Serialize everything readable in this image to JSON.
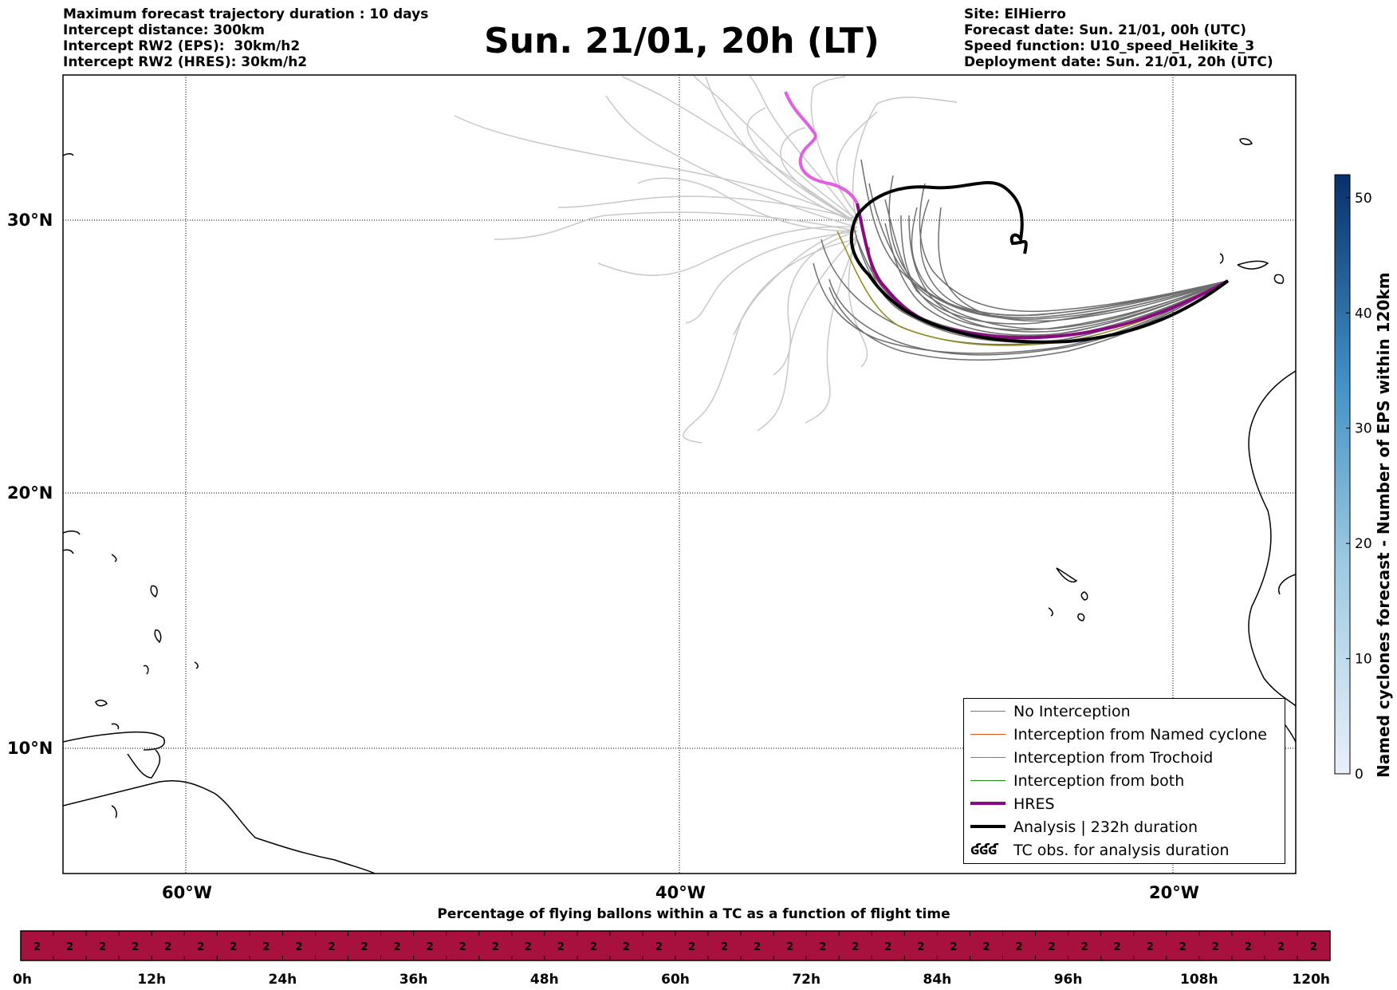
{
  "header_left": [
    "Maximum forecast trajectory duration : 10 days",
    "Intercept distance: 300km",
    "Intercept RW2 (EPS):  30km/h2",
    "Intercept RW2 (HRES): 30km/h2"
  ],
  "header_right": [
    "Site: ElHierro",
    "Forecast date: Sun. 21/01, 00h (UTC)",
    "Speed function: U10_speed_Helikite_3",
    "Deployment date: Sun. 21/01, 20h (UTC)"
  ],
  "title": "Sun. 21/01, 20h (LT)",
  "map": {
    "lat_labels": [
      "30°N",
      "20°N",
      "10°N"
    ],
    "lon_labels": [
      "60°W",
      "40°W",
      "20°W"
    ],
    "grid": "dotted"
  },
  "legend": [
    {
      "label": "No Interception",
      "color": "#7a7a7a",
      "kind": "line"
    },
    {
      "label": "Interception from Named cyclone",
      "color": "#e8541c",
      "kind": "line"
    },
    {
      "label": "Interception from Trochoid",
      "color": "#8f8a1a",
      "kind": "line"
    },
    {
      "label": "Interception from both",
      "color": "#1a8a1a",
      "kind": "line"
    },
    {
      "label": "HRES",
      "color": "#8b0a80",
      "kind": "thick"
    },
    {
      "label": "Analysis | 232h duration",
      "color": "#000000",
      "kind": "thick"
    },
    {
      "label": "TC obs. for analysis duration",
      "color": "#000000",
      "kind": "symbol",
      "symbol": "ʛʛʛ"
    }
  ],
  "colorbar": {
    "label": "Named cyclones forecast - Number of EPS within 120km",
    "ticks": [
      "0",
      "10",
      "20",
      "30",
      "40",
      "50"
    ],
    "range": [
      0,
      52
    ],
    "colors": [
      "#e8f0fa",
      "#08306b"
    ]
  },
  "strip": {
    "title": "Percentage of flying ballons within a TC as a function of flight time",
    "cell_value": "2",
    "cell_count": 40,
    "color": "#a8103e",
    "ticks": [
      "0h",
      "12h",
      "24h",
      "36h",
      "48h",
      "60h",
      "72h",
      "84h",
      "96h",
      "108h",
      "120h"
    ]
  }
}
